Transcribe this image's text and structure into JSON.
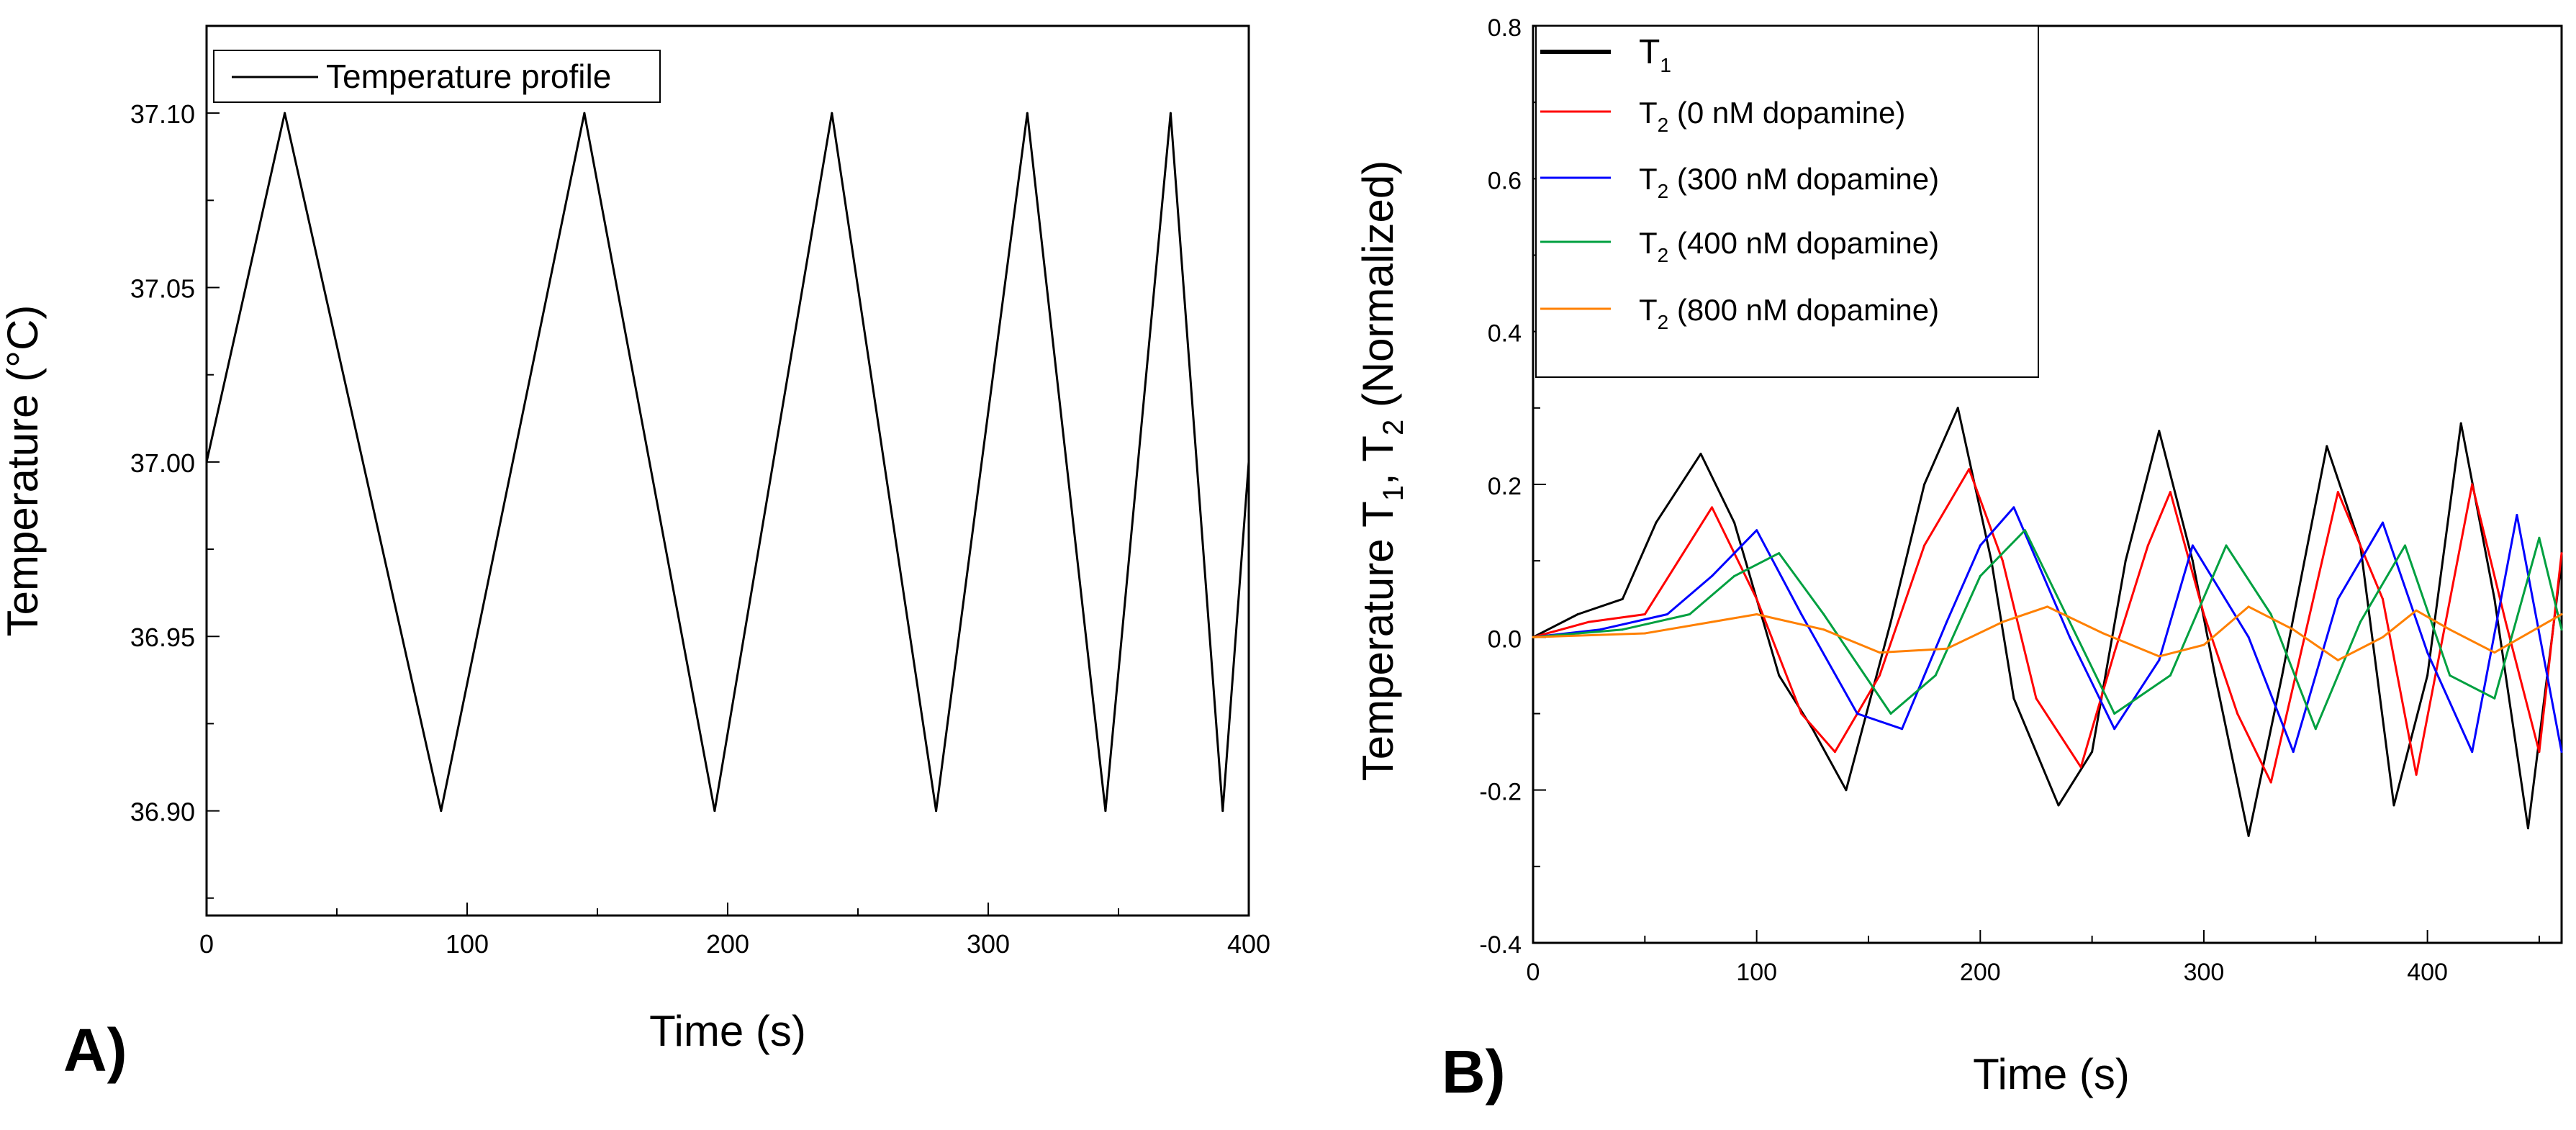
{
  "chart_data": [
    {
      "type": "line",
      "panel_label": "A)",
      "title": "",
      "xlabel": "Time (s)",
      "ylabel": "Temperature (°C)",
      "xlim": [
        0,
        400
      ],
      "ylim": [
        36.87,
        37.125
      ],
      "x_ticks": [
        0,
        100,
        200,
        300,
        400
      ],
      "y_ticks": [
        36.9,
        36.95,
        37.0,
        37.05,
        37.1
      ],
      "x_tick_labels": [
        "0",
        "100",
        "200",
        "300",
        "400"
      ],
      "y_tick_labels": [
        "36.90",
        "36.95",
        "37.00",
        "37.05",
        "37.10"
      ],
      "grid": false,
      "legend_position": "top-left",
      "series": [
        {
          "name": "Temperature profile",
          "color": "#000000",
          "x": [
            0,
            30,
            90,
            145,
            195,
            240,
            280,
            315,
            345,
            370,
            390,
            400
          ],
          "y": [
            37.0,
            37.1,
            36.9,
            37.1,
            36.9,
            37.1,
            36.9,
            37.1,
            36.9,
            37.1,
            36.9,
            37.0
          ]
        }
      ]
    },
    {
      "type": "line",
      "panel_label": "B)",
      "title": "",
      "xlabel": "Time (s)",
      "ylabel": "Temperature T1, T2 (Normalized)",
      "ylabel_parts": [
        "Temperature T",
        "1",
        ", T",
        "2",
        " (Normalized)"
      ],
      "xlim": [
        0,
        460
      ],
      "ylim": [
        -0.4,
        0.8
      ],
      "x_ticks": [
        0,
        100,
        200,
        300,
        400
      ],
      "y_ticks": [
        -0.4,
        -0.2,
        0.0,
        0.2,
        0.4,
        0.6,
        0.8
      ],
      "x_tick_labels": [
        "0",
        "100",
        "200",
        "300",
        "400"
      ],
      "y_tick_labels": [
        "-0.4",
        "-0.2",
        "0.0",
        "0.2",
        "0.4",
        "0.6",
        "0.8"
      ],
      "grid": false,
      "legend_position": "top-left",
      "series": [
        {
          "name": "T1",
          "legend_main": "T",
          "legend_sub": "1",
          "legend_rest": "",
          "color": "#000000",
          "x": [
            0,
            20,
            40,
            55,
            75,
            90,
            110,
            125,
            140,
            160,
            175,
            190,
            205,
            215,
            235,
            250,
            265,
            280,
            295,
            305,
            320,
            335,
            355,
            370,
            385,
            400,
            415,
            430,
            445,
            460
          ],
          "y": [
            0.0,
            0.03,
            0.05,
            0.15,
            0.24,
            0.15,
            -0.05,
            -0.12,
            -0.2,
            0.02,
            0.2,
            0.3,
            0.1,
            -0.08,
            -0.22,
            -0.15,
            0.1,
            0.27,
            0.1,
            -0.05,
            -0.26,
            -0.05,
            0.25,
            0.12,
            -0.22,
            -0.05,
            0.28,
            0.05,
            -0.25,
            0.1
          ]
        },
        {
          "name": "T2 (0 nM dopamine)",
          "legend_main": "T",
          "legend_sub": "2",
          "legend_rest": " (0 nM dopamine)",
          "color": "#ff0000",
          "x": [
            0,
            25,
            50,
            65,
            80,
            100,
            120,
            135,
            155,
            175,
            195,
            210,
            225,
            245,
            260,
            275,
            285,
            300,
            315,
            330,
            345,
            360,
            380,
            395,
            420,
            435,
            450,
            460
          ],
          "y": [
            0.0,
            0.02,
            0.03,
            0.1,
            0.17,
            0.05,
            -0.1,
            -0.15,
            -0.05,
            0.12,
            0.22,
            0.1,
            -0.08,
            -0.17,
            -0.02,
            0.12,
            0.19,
            0.03,
            -0.1,
            -0.19,
            0.0,
            0.19,
            0.05,
            -0.18,
            0.2,
            0.02,
            -0.15,
            0.11
          ]
        },
        {
          "name": "T2 (300 nM dopamine)",
          "legend_main": "T",
          "legend_sub": "2",
          "legend_rest": " (300 nM dopamine)",
          "color": "#0000ff",
          "x": [
            0,
            30,
            60,
            80,
            100,
            120,
            145,
            165,
            185,
            200,
            215,
            240,
            260,
            280,
            295,
            320,
            340,
            360,
            380,
            400,
            420,
            440,
            460
          ],
          "y": [
            0.0,
            0.01,
            0.03,
            0.08,
            0.14,
            0.03,
            -0.1,
            -0.12,
            0.02,
            0.12,
            0.17,
            0.0,
            -0.12,
            -0.03,
            0.12,
            0.0,
            -0.15,
            0.05,
            0.15,
            -0.02,
            -0.15,
            0.16,
            -0.15
          ]
        },
        {
          "name": "T2 (400 nM dopamine)",
          "legend_main": "T",
          "legend_sub": "2",
          "legend_rest": " (400 nM dopamine)",
          "color": "#00a040",
          "x": [
            0,
            40,
            70,
            90,
            110,
            130,
            160,
            180,
            200,
            220,
            240,
            260,
            285,
            310,
            330,
            350,
            370,
            390,
            410,
            430,
            450,
            460
          ],
          "y": [
            0.0,
            0.01,
            0.03,
            0.08,
            0.11,
            0.03,
            -0.1,
            -0.05,
            0.08,
            0.14,
            0.02,
            -0.1,
            -0.05,
            0.12,
            0.03,
            -0.12,
            0.02,
            0.12,
            -0.05,
            -0.08,
            0.13,
            0.01
          ]
        },
        {
          "name": "T2 (800 nM dopamine)",
          "legend_main": "T",
          "legend_sub": "2",
          "legend_rest": " (800 nM dopamine)",
          "color": "#ff8000",
          "x": [
            0,
            50,
            80,
            100,
            130,
            155,
            185,
            210,
            230,
            255,
            280,
            300,
            320,
            340,
            360,
            380,
            395,
            410,
            430,
            460
          ],
          "y": [
            0.0,
            0.005,
            0.02,
            0.03,
            0.01,
            -0.02,
            -0.015,
            0.02,
            0.04,
            0.005,
            -0.025,
            -0.01,
            0.04,
            0.01,
            -0.03,
            0.0,
            0.035,
            0.01,
            -0.02,
            0.03
          ]
        }
      ]
    }
  ]
}
